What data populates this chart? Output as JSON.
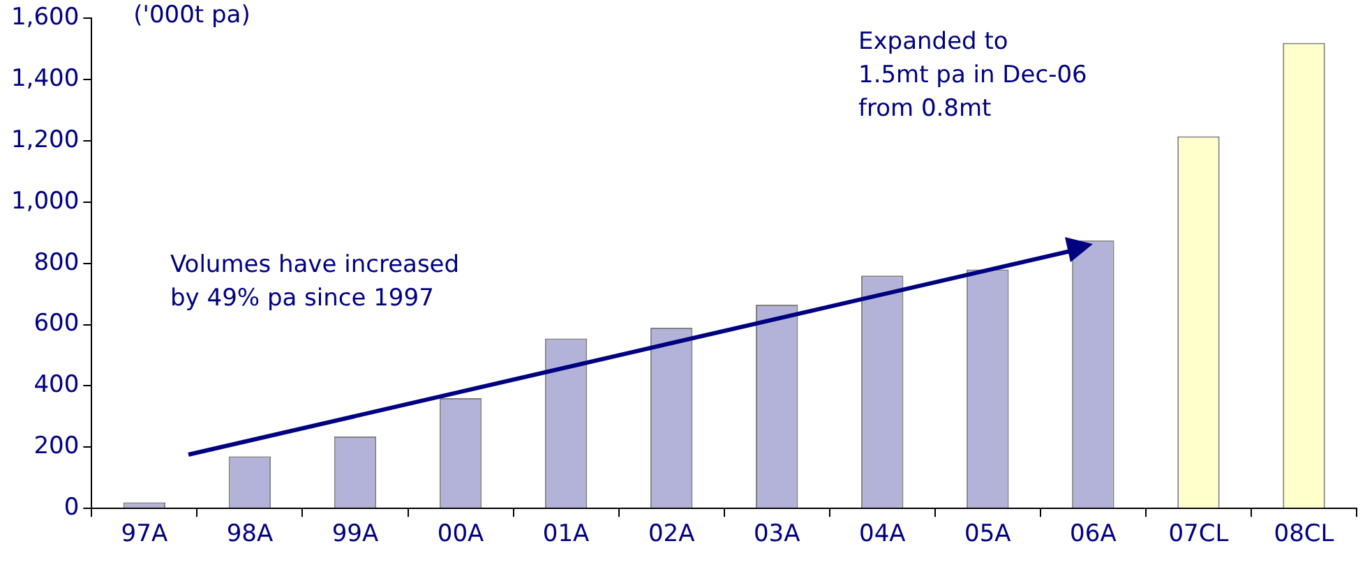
{
  "chart_data": {
    "type": "bar",
    "ylabel": "('000t pa)",
    "categories": [
      "97A",
      "98A",
      "99A",
      "00A",
      "01A",
      "02A",
      "03A",
      "04A",
      "05A",
      "06A",
      "07CL",
      "08CL"
    ],
    "values": [
      20,
      170,
      235,
      360,
      555,
      590,
      665,
      760,
      780,
      875,
      1215,
      1520
    ],
    "colors": [
      "#b3b3d9",
      "#b3b3d9",
      "#b3b3d9",
      "#b3b3d9",
      "#b3b3d9",
      "#b3b3d9",
      "#b3b3d9",
      "#b3b3d9",
      "#b3b3d9",
      "#b3b3d9",
      "#ffffcc",
      "#ffffcc"
    ],
    "ylim": [
      0,
      1600
    ],
    "yticks": [
      0,
      200,
      400,
      600,
      800,
      {
        "value": 1000,
        "label": "1,000"
      },
      {
        "value": 1200,
        "label": "1,200"
      },
      {
        "value": 1400,
        "label": "1,400"
      },
      {
        "value": 1600,
        "label": "1,600"
      }
    ],
    "grid": false,
    "legend": false,
    "annotations": [
      "Volumes have increased\nby 49% pa since 1997",
      "Expanded to\n1.5mt pa in Dec-06\nfrom 0.8mt"
    ]
  }
}
